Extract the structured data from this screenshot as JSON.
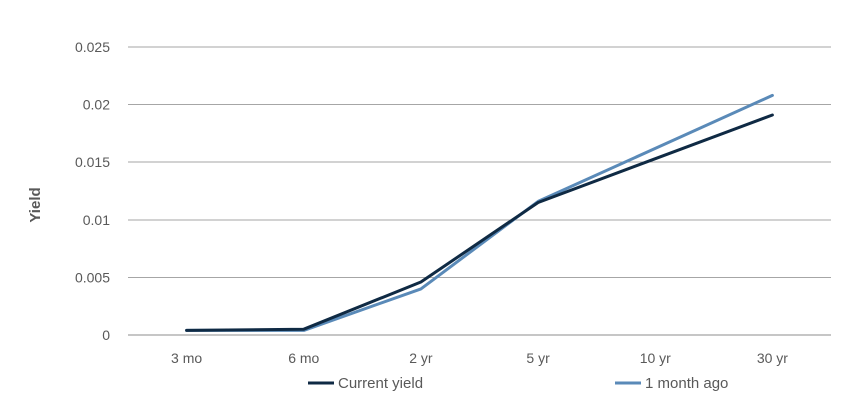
{
  "chart_data": {
    "type": "line",
    "title": "",
    "xlabel": "",
    "ylabel": "Yield",
    "categories": [
      "3 mo",
      "6 mo",
      "2 yr",
      "5 yr",
      "10 yr",
      "30 yr"
    ],
    "yticks": [
      "0",
      "0.005",
      "0.01",
      "0.015",
      "0.02",
      "0.025"
    ],
    "ylim": [
      0,
      0.025
    ],
    "grid": true,
    "legend_position": "bottom",
    "series": [
      {
        "name": "Current yield",
        "color": "#0f2a44",
        "values": [
          0.0004,
          0.0005,
          0.0046,
          0.0115,
          0.0153,
          0.0191
        ]
      },
      {
        "name": "1 month ago",
        "color": "#5a8ab8",
        "values": [
          0.0004,
          0.0004,
          0.004,
          0.0116,
          0.0162,
          0.0208
        ]
      }
    ]
  }
}
